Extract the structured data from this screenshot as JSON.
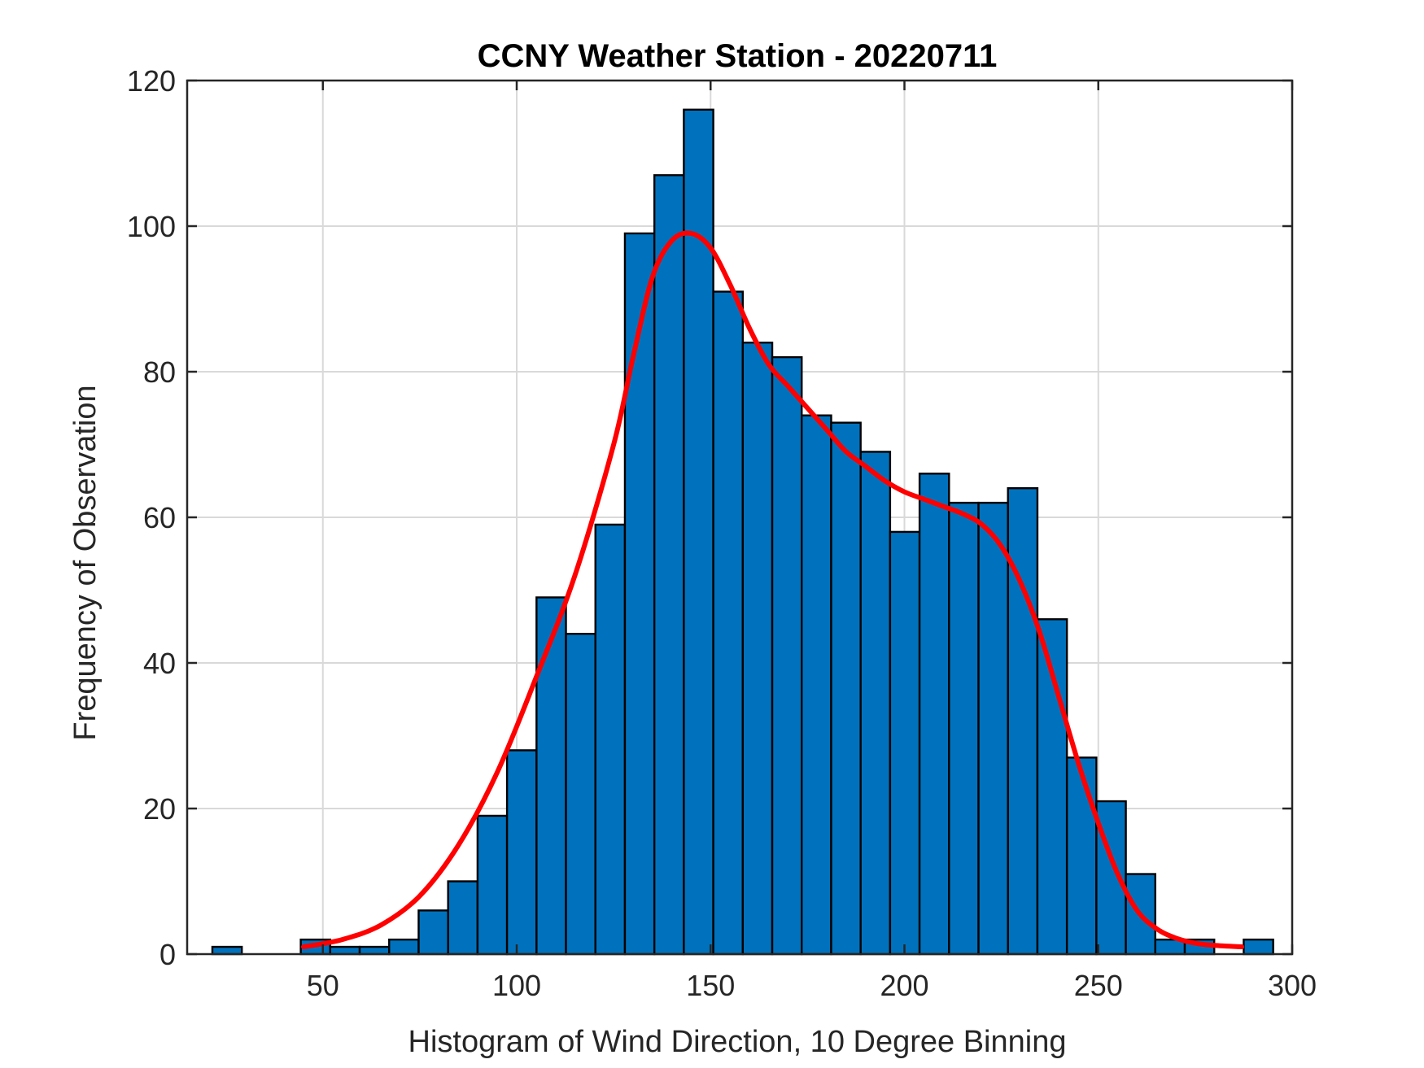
{
  "chart_data": {
    "type": "bar",
    "title": "CCNY Weather Station - 20220711",
    "xlabel": "Histogram of Wind Direction, 10 Degree Binning",
    "ylabel": "Frequency of Observation",
    "xlim": [
      15,
      300
    ],
    "ylim": [
      0,
      120
    ],
    "xticks": [
      "50",
      "100",
      "150",
      "200",
      "250",
      "300"
    ],
    "yticks": [
      "0",
      "20",
      "40",
      "60",
      "80",
      "100",
      "120"
    ],
    "grid": true,
    "bar_color": "#0072BD",
    "bin_width": 7.6,
    "bins": [
      {
        "x0": 21.5,
        "value": 1
      },
      {
        "x0": 44.3,
        "value": 2
      },
      {
        "x0": 51.9,
        "value": 1
      },
      {
        "x0": 59.5,
        "value": 1
      },
      {
        "x0": 67.1,
        "value": 2
      },
      {
        "x0": 74.7,
        "value": 6
      },
      {
        "x0": 82.3,
        "value": 10
      },
      {
        "x0": 89.9,
        "value": 19
      },
      {
        "x0": 97.5,
        "value": 28
      },
      {
        "x0": 105.1,
        "value": 49
      },
      {
        "x0": 112.7,
        "value": 44
      },
      {
        "x0": 120.3,
        "value": 59
      },
      {
        "x0": 127.9,
        "value": 99
      },
      {
        "x0": 135.5,
        "value": 107
      },
      {
        "x0": 143.1,
        "value": 116
      },
      {
        "x0": 150.7,
        "value": 91
      },
      {
        "x0": 158.3,
        "value": 84
      },
      {
        "x0": 165.9,
        "value": 82
      },
      {
        "x0": 173.5,
        "value": 74
      },
      {
        "x0": 181.1,
        "value": 73
      },
      {
        "x0": 188.7,
        "value": 69
      },
      {
        "x0": 196.3,
        "value": 58
      },
      {
        "x0": 203.9,
        "value": 66
      },
      {
        "x0": 211.5,
        "value": 62
      },
      {
        "x0": 219.1,
        "value": 62
      },
      {
        "x0": 226.7,
        "value": 64
      },
      {
        "x0": 234.3,
        "value": 46
      },
      {
        "x0": 241.9,
        "value": 27
      },
      {
        "x0": 249.5,
        "value": 21
      },
      {
        "x0": 257.1,
        "value": 11
      },
      {
        "x0": 264.7,
        "value": 2
      },
      {
        "x0": 272.3,
        "value": 2
      },
      {
        "x0": 287.5,
        "value": 2
      }
    ],
    "fit_curve": {
      "color": "#FF0000",
      "x": [
        45,
        55,
        65,
        75,
        85,
        95,
        105,
        115,
        125,
        130,
        135,
        140,
        145,
        150,
        155,
        160,
        165,
        170,
        175,
        180,
        185,
        190,
        195,
        200,
        205,
        210,
        215,
        220,
        225,
        230,
        235,
        240,
        245,
        250,
        255,
        260,
        265,
        270,
        275,
        280,
        287
      ],
      "y": [
        1,
        2,
        4,
        8,
        15,
        25,
        38,
        52,
        70,
        82,
        93,
        98,
        99,
        97,
        92,
        86,
        81,
        78,
        75,
        72,
        69,
        67,
        65,
        63.5,
        62.5,
        61.5,
        60.5,
        59,
        56,
        51,
        44,
        35,
        26,
        18,
        11,
        6,
        3.5,
        2.2,
        1.5,
        1.2,
        1
      ]
    }
  }
}
